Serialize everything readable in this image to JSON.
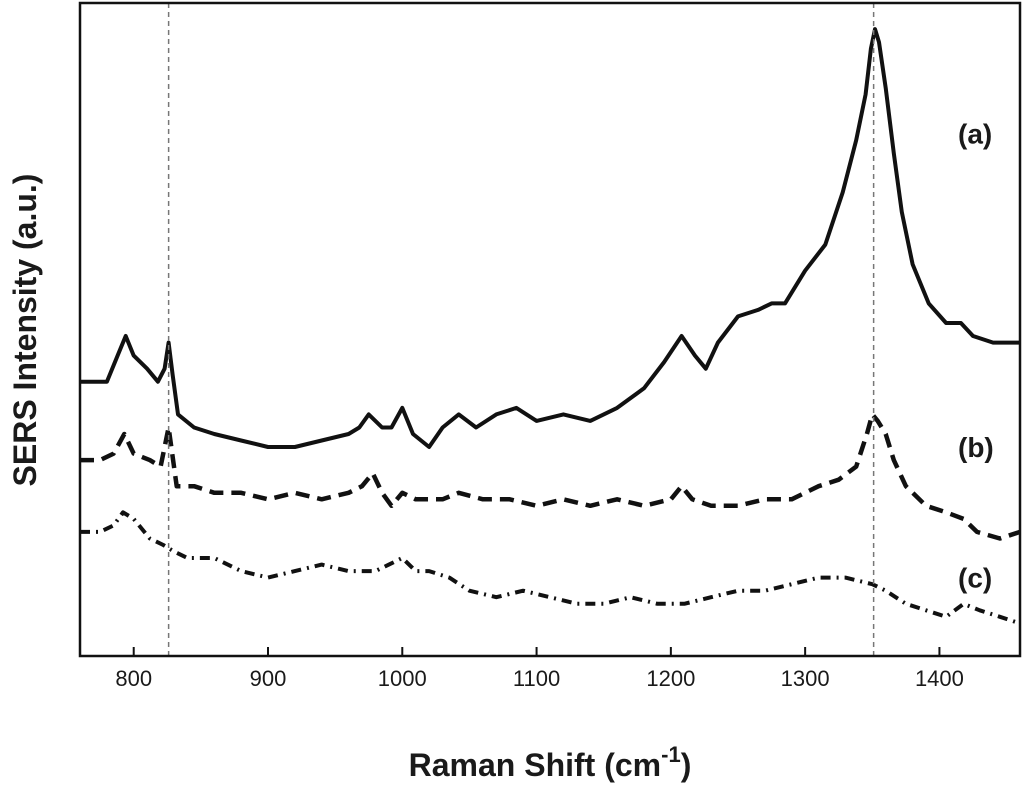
{
  "chart_data": {
    "type": "line",
    "xlabel": "Raman Shift (cm",
    "xlabel_superscript": "-1",
    "xlabel_suffix": ")",
    "ylabel": "SERS Intensity (a.u.)",
    "xlim": [
      760,
      1460
    ],
    "ylim": [
      0,
      10
    ],
    "x_ticks": [
      800,
      900,
      1000,
      1100,
      1200,
      1300,
      1400
    ],
    "y_ticks_shown": false,
    "grid": false,
    "legend": "none",
    "reference_lines": [
      826,
      1351
    ],
    "series": [
      {
        "label": "(a)",
        "style": "solid",
        "color": "#111111",
        "x": [
          760,
          780,
          788,
          794,
          800,
          810,
          818,
          823,
          826,
          829,
          833,
          845,
          860,
          880,
          900,
          920,
          940,
          960,
          968,
          975,
          985,
          992,
          1000,
          1008,
          1020,
          1030,
          1042,
          1055,
          1070,
          1085,
          1100,
          1120,
          1140,
          1160,
          1180,
          1195,
          1208,
          1218,
          1226,
          1235,
          1250,
          1265,
          1275,
          1285,
          1300,
          1315,
          1328,
          1338,
          1345,
          1349,
          1352,
          1355,
          1360,
          1366,
          1372,
          1380,
          1392,
          1405,
          1416,
          1425,
          1440,
          1460
        ],
        "y": [
          4.2,
          4.2,
          4.6,
          4.9,
          4.6,
          4.4,
          4.2,
          4.4,
          4.8,
          4.3,
          3.7,
          3.5,
          3.4,
          3.3,
          3.2,
          3.2,
          3.3,
          3.4,
          3.5,
          3.7,
          3.5,
          3.5,
          3.8,
          3.4,
          3.2,
          3.5,
          3.7,
          3.5,
          3.7,
          3.8,
          3.6,
          3.7,
          3.6,
          3.8,
          4.1,
          4.5,
          4.9,
          4.6,
          4.4,
          4.8,
          5.2,
          5.3,
          5.4,
          5.4,
          5.9,
          6.3,
          7.1,
          7.9,
          8.6,
          9.3,
          9.6,
          9.4,
          8.7,
          7.7,
          6.8,
          6.0,
          5.4,
          5.1,
          5.1,
          4.9,
          4.8,
          4.8
        ]
      },
      {
        "label": "(b)",
        "style": "dashed",
        "color": "#111111",
        "x": [
          760,
          775,
          785,
          793,
          800,
          812,
          820,
          826,
          832,
          845,
          860,
          880,
          900,
          920,
          940,
          960,
          970,
          978,
          985,
          992,
          1000,
          1010,
          1030,
          1042,
          1060,
          1080,
          1100,
          1120,
          1140,
          1160,
          1180,
          1200,
          1208,
          1216,
          1230,
          1250,
          1270,
          1290,
          1310,
          1325,
          1338,
          1346,
          1350,
          1354,
          1360,
          1366,
          1375,
          1390,
          1405,
          1418,
          1428,
          1445,
          1460
        ],
        "y": [
          3.0,
          3.0,
          3.1,
          3.4,
          3.1,
          3.0,
          2.9,
          3.5,
          2.6,
          2.6,
          2.5,
          2.5,
          2.4,
          2.5,
          2.4,
          2.5,
          2.6,
          2.8,
          2.5,
          2.3,
          2.5,
          2.4,
          2.4,
          2.5,
          2.4,
          2.4,
          2.3,
          2.4,
          2.3,
          2.4,
          2.3,
          2.4,
          2.6,
          2.4,
          2.3,
          2.3,
          2.4,
          2.4,
          2.6,
          2.7,
          2.9,
          3.4,
          3.7,
          3.6,
          3.4,
          3.0,
          2.6,
          2.3,
          2.2,
          2.1,
          1.9,
          1.8,
          1.9
        ]
      },
      {
        "label": "(c)",
        "style": "dash-dot",
        "color": "#111111",
        "x": [
          760,
          775,
          785,
          792,
          800,
          812,
          822,
          830,
          840,
          860,
          880,
          900,
          920,
          940,
          960,
          980,
          990,
          1000,
          1010,
          1020,
          1035,
          1050,
          1070,
          1090,
          1110,
          1130,
          1150,
          1170,
          1190,
          1210,
          1230,
          1250,
          1270,
          1290,
          1310,
          1330,
          1350,
          1360,
          1375,
          1390,
          1405,
          1418,
          1430,
          1445,
          1460
        ],
        "y": [
          1.9,
          1.9,
          2.0,
          2.2,
          2.1,
          1.8,
          1.7,
          1.6,
          1.5,
          1.5,
          1.3,
          1.2,
          1.3,
          1.4,
          1.3,
          1.3,
          1.4,
          1.5,
          1.3,
          1.3,
          1.2,
          1.0,
          0.9,
          1.0,
          0.9,
          0.8,
          0.8,
          0.9,
          0.8,
          0.8,
          0.9,
          1.0,
          1.0,
          1.1,
          1.2,
          1.2,
          1.1,
          1.0,
          0.8,
          0.7,
          0.6,
          0.8,
          0.7,
          0.6,
          0.5
        ]
      }
    ]
  }
}
